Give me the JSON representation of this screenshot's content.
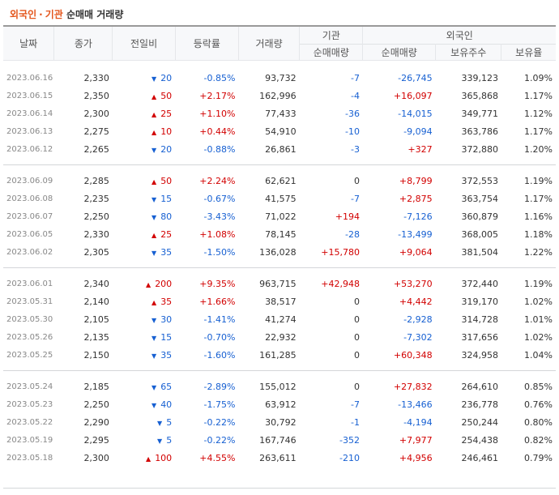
{
  "title": {
    "part1": "외국인",
    "separator": "·",
    "part2": "기관",
    "rest": "순매매 거래량"
  },
  "headers": {
    "date": "날짜",
    "close": "종가",
    "change": "전일비",
    "rate": "등락률",
    "volume": "거래량",
    "institution": "기관",
    "foreign": "외국인",
    "inst_net": "순매매량",
    "foreign_net": "순매매량",
    "holdings": "보유주수",
    "holding_ratio": "보유율"
  },
  "colors": {
    "up": "#d20000",
    "down": "#1760d2",
    "accent": "#e4551b"
  },
  "groups": [
    [
      {
        "date": "2023.06.16",
        "close": "2,330",
        "dir": "down",
        "change": "20",
        "rate": "-0.85%",
        "volume": "93,732",
        "inst": "-7",
        "foreign": "-26,745",
        "holdings": "339,123",
        "ratio": "1.09%"
      },
      {
        "date": "2023.06.15",
        "close": "2,350",
        "dir": "up",
        "change": "50",
        "rate": "+2.17%",
        "volume": "162,996",
        "inst": "-4",
        "foreign": "+16,097",
        "holdings": "365,868",
        "ratio": "1.17%"
      },
      {
        "date": "2023.06.14",
        "close": "2,300",
        "dir": "up",
        "change": "25",
        "rate": "+1.10%",
        "volume": "77,433",
        "inst": "-36",
        "foreign": "-14,015",
        "holdings": "349,771",
        "ratio": "1.12%"
      },
      {
        "date": "2023.06.13",
        "close": "2,275",
        "dir": "up",
        "change": "10",
        "rate": "+0.44%",
        "volume": "54,910",
        "inst": "-10",
        "foreign": "-9,094",
        "holdings": "363,786",
        "ratio": "1.17%"
      },
      {
        "date": "2023.06.12",
        "close": "2,265",
        "dir": "down",
        "change": "20",
        "rate": "-0.88%",
        "volume": "26,861",
        "inst": "-3",
        "foreign": "+327",
        "holdings": "372,880",
        "ratio": "1.20%"
      }
    ],
    [
      {
        "date": "2023.06.09",
        "close": "2,285",
        "dir": "up",
        "change": "50",
        "rate": "+2.24%",
        "volume": "62,621",
        "inst": "0",
        "foreign": "+8,799",
        "holdings": "372,553",
        "ratio": "1.19%"
      },
      {
        "date": "2023.06.08",
        "close": "2,235",
        "dir": "down",
        "change": "15",
        "rate": "-0.67%",
        "volume": "41,575",
        "inst": "-7",
        "foreign": "+2,875",
        "holdings": "363,754",
        "ratio": "1.17%"
      },
      {
        "date": "2023.06.07",
        "close": "2,250",
        "dir": "down",
        "change": "80",
        "rate": "-3.43%",
        "volume": "71,022",
        "inst": "+194",
        "foreign": "-7,126",
        "holdings": "360,879",
        "ratio": "1.16%"
      },
      {
        "date": "2023.06.05",
        "close": "2,330",
        "dir": "up",
        "change": "25",
        "rate": "+1.08%",
        "volume": "78,145",
        "inst": "-28",
        "foreign": "-13,499",
        "holdings": "368,005",
        "ratio": "1.18%"
      },
      {
        "date": "2023.06.02",
        "close": "2,305",
        "dir": "down",
        "change": "35",
        "rate": "-1.50%",
        "volume": "136,028",
        "inst": "+15,780",
        "foreign": "+9,064",
        "holdings": "381,504",
        "ratio": "1.22%"
      }
    ],
    [
      {
        "date": "2023.06.01",
        "close": "2,340",
        "dir": "up",
        "change": "200",
        "rate": "+9.35%",
        "volume": "963,715",
        "inst": "+42,948",
        "foreign": "+53,270",
        "holdings": "372,440",
        "ratio": "1.19%"
      },
      {
        "date": "2023.05.31",
        "close": "2,140",
        "dir": "up",
        "change": "35",
        "rate": "+1.66%",
        "volume": "38,517",
        "inst": "0",
        "foreign": "+4,442",
        "holdings": "319,170",
        "ratio": "1.02%"
      },
      {
        "date": "2023.05.30",
        "close": "2,105",
        "dir": "down",
        "change": "30",
        "rate": "-1.41%",
        "volume": "41,274",
        "inst": "0",
        "foreign": "-2,928",
        "holdings": "314,728",
        "ratio": "1.01%"
      },
      {
        "date": "2023.05.26",
        "close": "2,135",
        "dir": "down",
        "change": "15",
        "rate": "-0.70%",
        "volume": "22,932",
        "inst": "0",
        "foreign": "-7,302",
        "holdings": "317,656",
        "ratio": "1.02%"
      },
      {
        "date": "2023.05.25",
        "close": "2,150",
        "dir": "down",
        "change": "35",
        "rate": "-1.60%",
        "volume": "161,285",
        "inst": "0",
        "foreign": "+60,348",
        "holdings": "324,958",
        "ratio": "1.04%"
      }
    ],
    [
      {
        "date": "2023.05.24",
        "close": "2,185",
        "dir": "down",
        "change": "65",
        "rate": "-2.89%",
        "volume": "155,012",
        "inst": "0",
        "foreign": "+27,832",
        "holdings": "264,610",
        "ratio": "0.85%"
      },
      {
        "date": "2023.05.23",
        "close": "2,250",
        "dir": "down",
        "change": "40",
        "rate": "-1.75%",
        "volume": "63,912",
        "inst": "-7",
        "foreign": "-13,466",
        "holdings": "236,778",
        "ratio": "0.76%"
      },
      {
        "date": "2023.05.22",
        "close": "2,290",
        "dir": "down",
        "change": "5",
        "rate": "-0.22%",
        "volume": "30,792",
        "inst": "-1",
        "foreign": "-4,194",
        "holdings": "250,244",
        "ratio": "0.80%"
      },
      {
        "date": "2023.05.19",
        "close": "2,295",
        "dir": "down",
        "change": "5",
        "rate": "-0.22%",
        "volume": "167,746",
        "inst": "-352",
        "foreign": "+7,977",
        "holdings": "254,438",
        "ratio": "0.82%"
      },
      {
        "date": "2023.05.18",
        "close": "2,300",
        "dir": "up",
        "change": "100",
        "rate": "+4.55%",
        "volume": "263,611",
        "inst": "-210",
        "foreign": "+4,956",
        "holdings": "246,461",
        "ratio": "0.79%"
      }
    ]
  ]
}
